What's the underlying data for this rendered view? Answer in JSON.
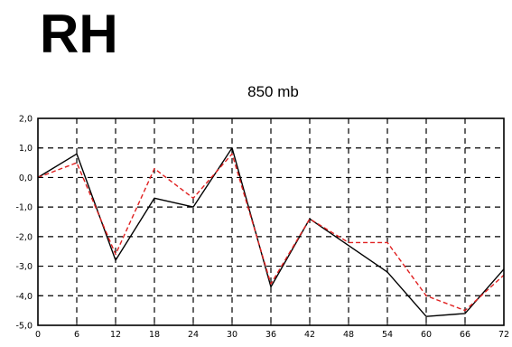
{
  "page": {
    "heading": "RH"
  },
  "chart_data": {
    "type": "line",
    "title": "850 mb",
    "xlabel": "",
    "ylabel": "",
    "x": [
      0,
      6,
      12,
      18,
      24,
      30,
      36,
      42,
      48,
      54,
      60,
      66,
      72
    ],
    "x_tick_labels": [
      "0",
      "6",
      "12",
      "18",
      "24",
      "30",
      "36",
      "42",
      "48",
      "54",
      "60",
      "66",
      "72"
    ],
    "y_tick_values": [
      2.0,
      1.0,
      0.0,
      -1.0,
      -2.0,
      -3.0,
      -4.0,
      -5.0
    ],
    "y_tick_labels": [
      "2,0",
      "1,0",
      "0,0",
      "-1,0",
      "-2,0",
      "-3,0",
      "-4,0",
      "-5,0"
    ],
    "xlim": [
      0,
      72
    ],
    "ylim": [
      -5.0,
      2.0
    ],
    "grid": true,
    "grid_style": "dashed",
    "series": [
      {
        "color": "#000000",
        "style": "solid",
        "values": [
          0.0,
          0.8,
          -2.8,
          -0.7,
          -1.0,
          1.0,
          -3.7,
          -1.4,
          -2.3,
          -3.2,
          -4.7,
          -4.6,
          -3.1
        ]
      },
      {
        "color": "#e02020",
        "style": "dashed",
        "values": [
          0.0,
          0.5,
          -2.6,
          0.3,
          -0.7,
          0.8,
          -3.6,
          -1.4,
          -2.2,
          -2.2,
          -4.0,
          -4.5,
          -3.3
        ]
      }
    ]
  }
}
